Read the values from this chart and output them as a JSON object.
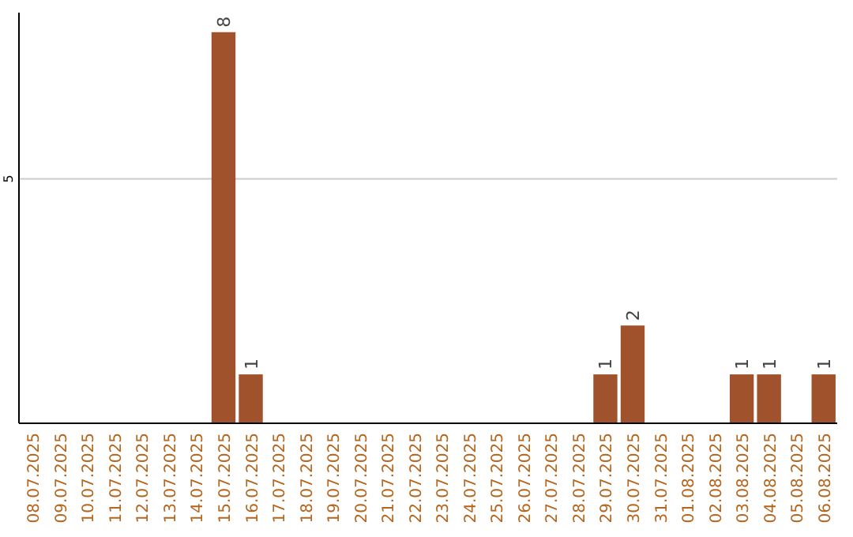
{
  "chart_data": {
    "type": "bar",
    "categories": [
      "08.07.2025",
      "09.07.2025",
      "10.07.2025",
      "11.07.2025",
      "12.07.2025",
      "13.07.2025",
      "14.07.2025",
      "15.07.2025",
      "16.07.2025",
      "17.07.2025",
      "18.07.2025",
      "19.07.2025",
      "20.07.2025",
      "21.07.2025",
      "22.07.2025",
      "23.07.2025",
      "24.07.2025",
      "25.07.2025",
      "26.07.2025",
      "27.07.2025",
      "28.07.2025",
      "29.07.2025",
      "30.07.2025",
      "31.07.2025",
      "01.08.2025",
      "02.08.2025",
      "03.08.2025",
      "04.08.2025",
      "05.08.2025",
      "06.08.2025"
    ],
    "values": [
      0,
      0,
      0,
      0,
      0,
      0,
      0,
      8,
      1,
      0,
      0,
      0,
      0,
      0,
      0,
      0,
      0,
      0,
      0,
      0,
      0,
      1,
      2,
      0,
      0,
      0,
      1,
      1,
      0,
      1
    ],
    "value_labels": [
      null,
      null,
      null,
      null,
      null,
      null,
      null,
      "8",
      "1",
      null,
      null,
      null,
      null,
      null,
      null,
      null,
      null,
      null,
      null,
      null,
      null,
      "1",
      "2",
      null,
      null,
      null,
      "1",
      "1",
      null,
      "1"
    ],
    "color": "#a0522d",
    "ylim": [
      0,
      8.4
    ],
    "yticks": [
      {
        "value": 0,
        "label": null
      },
      5
    ],
    "grid": "y"
  }
}
